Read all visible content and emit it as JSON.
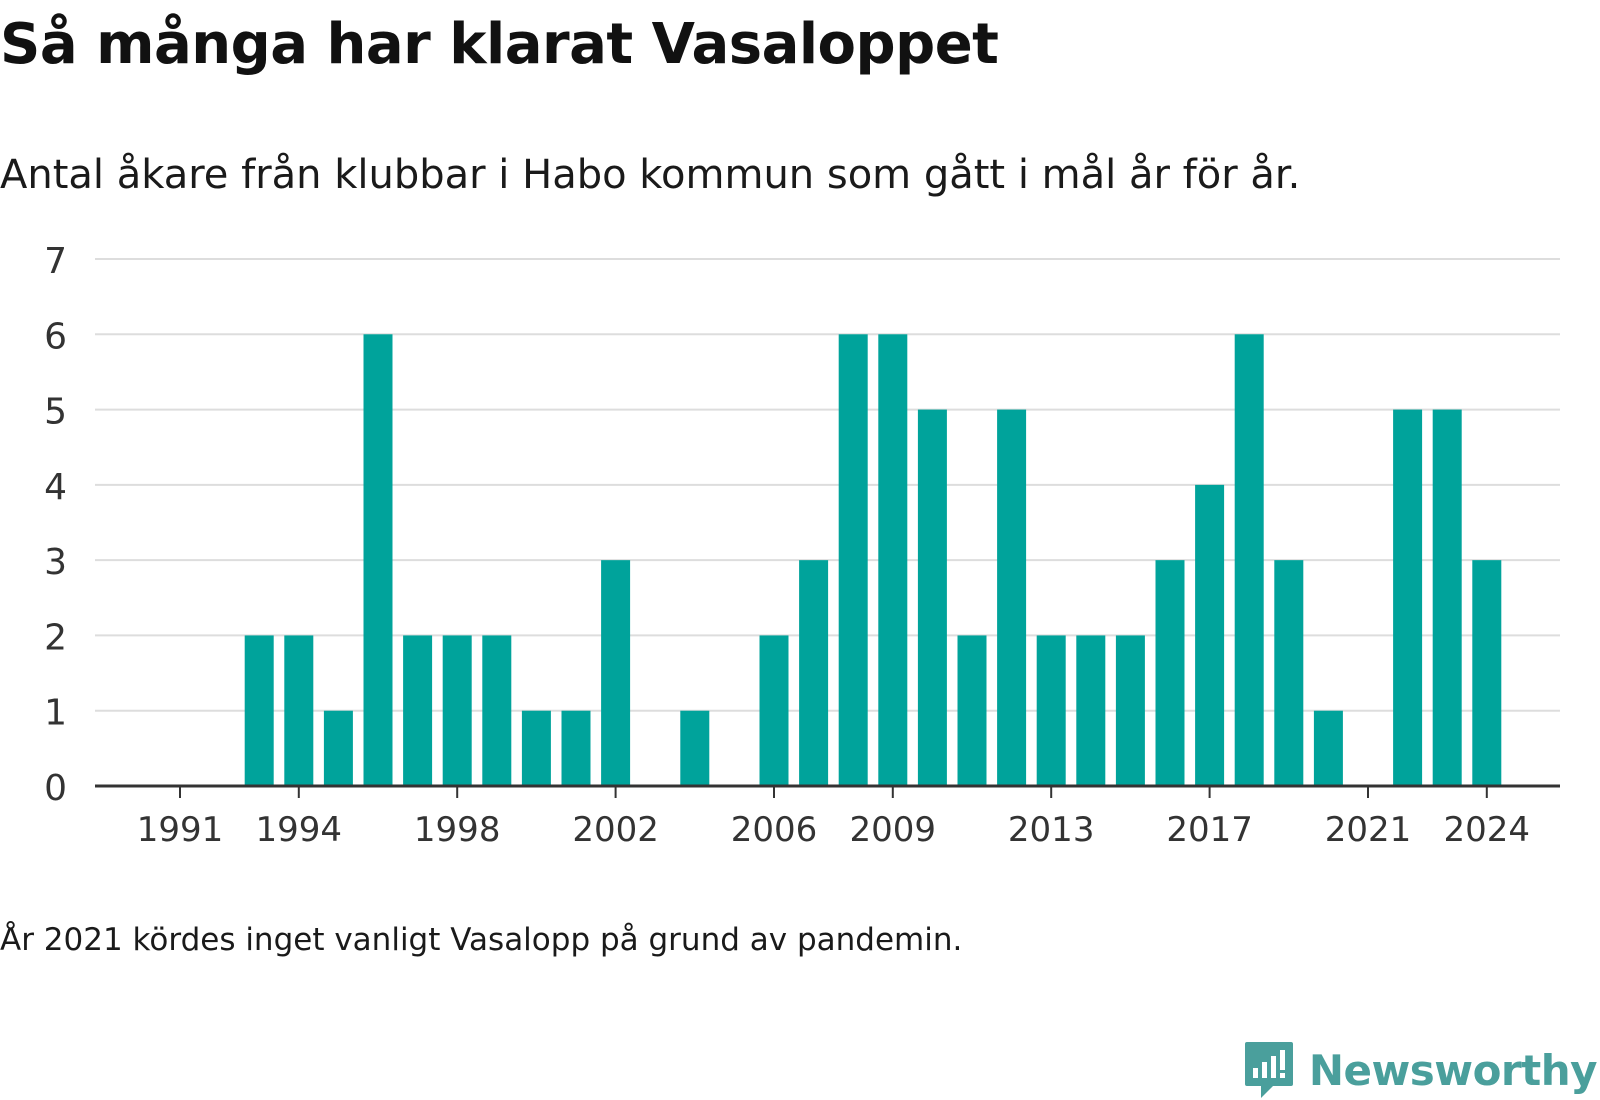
{
  "title": "Så många har klarat Vasaloppet",
  "subtitle": "Antal åkare från klubbar i Habo kommun som gått i mål år för år.",
  "footnote": "År 2021 kördes inget vanligt Vasalopp på grund av pandemin.",
  "brand": {
    "name": "Newsworthy",
    "icon": "newsworthy-logo-icon"
  },
  "colors": {
    "bar": "#00a39b",
    "grid": "#dddddd",
    "axis": "#333333",
    "brand": "#4a9f9c"
  },
  "chart_data": {
    "type": "bar",
    "title": "Så många har klarat Vasaloppet",
    "subtitle": "Antal åkare från klubbar i Habo kommun som gått i mål år för år.",
    "xlabel": "",
    "ylabel": "",
    "ylim": [
      0,
      7
    ],
    "yticks": [
      0,
      1,
      2,
      3,
      4,
      5,
      6,
      7
    ],
    "xticks": [
      1991,
      1994,
      1998,
      2002,
      2006,
      2009,
      2013,
      2017,
      2021,
      2024
    ],
    "grid": true,
    "categories": [
      1991,
      1992,
      1993,
      1994,
      1995,
      1996,
      1997,
      1998,
      1999,
      2000,
      2001,
      2002,
      2003,
      2004,
      2005,
      2006,
      2007,
      2008,
      2009,
      2010,
      2011,
      2012,
      2013,
      2014,
      2015,
      2016,
      2017,
      2018,
      2019,
      2020,
      2021,
      2022,
      2023,
      2024
    ],
    "values": [
      0,
      0,
      2,
      2,
      1,
      6,
      2,
      2,
      2,
      1,
      1,
      3,
      0,
      1,
      0,
      2,
      3,
      6,
      6,
      5,
      2,
      5,
      2,
      2,
      2,
      3,
      4,
      6,
      3,
      1,
      0,
      5,
      5,
      3
    ]
  }
}
